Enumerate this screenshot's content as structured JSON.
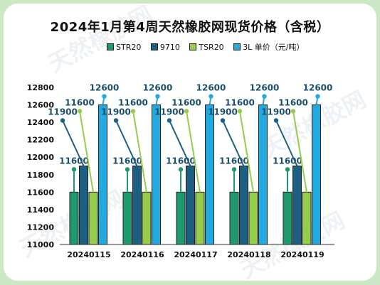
{
  "title": "2024年1月第4周天然橡胶网现货价格（含税）",
  "legend": [
    {
      "name": "STR20",
      "color": "#1e9a6e"
    },
    {
      "name": "9710",
      "color": "#1d5f80"
    },
    {
      "name": "TSR20",
      "color": "#96cc4c"
    },
    {
      "name": "3L 单价（元/吨）",
      "color": "#21a9e0"
    }
  ],
  "watermark": "天然橡胶网",
  "chart_data": {
    "type": "bar",
    "title": "2024年1月第4周天然橡胶网现货价格（含税）",
    "categories": [
      "20240115",
      "20240116",
      "20240117",
      "20240118",
      "20240119"
    ],
    "series": [
      {
        "name": "STR20",
        "values": [
          11600,
          11600,
          11600,
          11600,
          11600
        ]
      },
      {
        "name": "9710",
        "values": [
          11900,
          11900,
          11900,
          11900,
          11900
        ]
      },
      {
        "name": "TSR20",
        "values": [
          11600,
          11600,
          11600,
          11600,
          11600
        ]
      },
      {
        "name": "3L 单价（元/吨）",
        "values": [
          12600,
          12600,
          12600,
          12600,
          12600
        ]
      }
    ],
    "ylim": [
      11000,
      12800
    ],
    "yticks": [
      11000,
      11200,
      11400,
      11600,
      11800,
      12000,
      12200,
      12400,
      12600,
      12800
    ],
    "grid": false,
    "legend_position": "top"
  }
}
